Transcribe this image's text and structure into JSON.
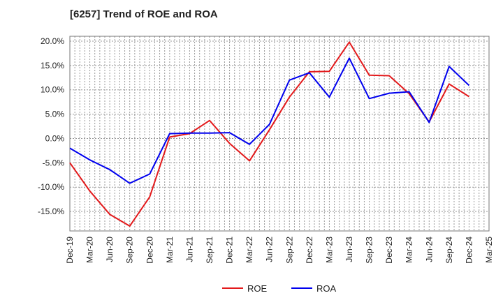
{
  "chart_data": {
    "type": "line",
    "title": "[6257]  Trend of ROE and ROA",
    "xlabel": "",
    "ylabel": "",
    "categories": [
      "Dec-19",
      "Mar-20",
      "Jun-20",
      "Sep-20",
      "Dec-20",
      "Mar-21",
      "Jun-21",
      "Sep-21",
      "Dec-21",
      "Mar-22",
      "Jun-22",
      "Sep-22",
      "Dec-22",
      "Mar-23",
      "Jun-23",
      "Sep-23",
      "Dec-23",
      "Mar-24",
      "Jun-24",
      "Sep-24",
      "Dec-24",
      "Mar-25"
    ],
    "ylim": [
      -19,
      21
    ],
    "yticks": [
      -15,
      -10,
      -5,
      0,
      5,
      10,
      15,
      20
    ],
    "ytick_labels": [
      "-15.0%",
      "-10.0%",
      "-5.0%",
      "0.0%",
      "5.0%",
      "10.0%",
      "15.0%",
      "20.0%"
    ],
    "grid": true,
    "legend_position": "bottom",
    "series": [
      {
        "name": "ROE",
        "color": "#e31a1c",
        "values": [
          -5.0,
          -10.8,
          -15.6,
          -18.0,
          -12.0,
          0.3,
          1.0,
          3.7,
          -1.0,
          -4.6,
          1.8,
          8.5,
          13.7,
          13.8,
          19.8,
          13.0,
          12.9,
          9.2,
          3.4,
          11.2,
          8.6,
          null
        ]
      },
      {
        "name": "ROA",
        "color": "#0000ee",
        "values": [
          -2.0,
          -4.4,
          -6.4,
          -9.2,
          -7.3,
          1.0,
          1.1,
          1.1,
          1.2,
          -1.2,
          2.9,
          12.0,
          13.5,
          8.5,
          16.5,
          8.2,
          9.3,
          9.6,
          3.3,
          14.8,
          10.9,
          null
        ]
      }
    ]
  }
}
